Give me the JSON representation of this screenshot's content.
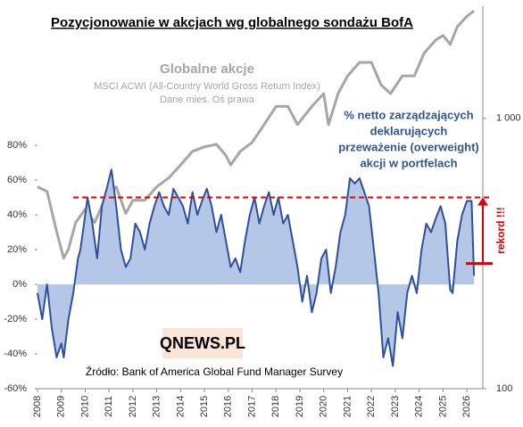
{
  "chart_data": {
    "type": "line",
    "title": "Pozycjonowanie w akcjach wg globalnego sondażu BofA",
    "subtitle_lines": [
      "MSCI ACWI (All-Country World Gross Return Index)",
      "Dane mies. Oś prawa"
    ],
    "annotation_lines": [
      "% netto zarządzających",
      "deklarujących",
      "przeważenie (overweight)",
      "akcji w portfelach"
    ],
    "record_label": "rekord !!!",
    "record_line": 50,
    "record_arrow": [
      12,
      50
    ],
    "source": "Źródło: Bank of America Global Fund Manager Survey",
    "logo": "QNEWS.PL",
    "xlim": [
      2008,
      2026.67
    ],
    "xticks": [
      2008,
      2009,
      2010,
      2011,
      2012,
      2013,
      2014,
      2015,
      2016,
      2017,
      2018,
      2019,
      2020,
      2021,
      2022,
      2023,
      2024,
      2025,
      2026
    ],
    "ylim": [
      -60,
      160
    ],
    "yticks": [
      {
        "value": -60,
        "label": "-60%"
      },
      {
        "value": -40,
        "label": "-40%"
      },
      {
        "value": -20,
        "label": "-20%"
      },
      {
        "value": 0,
        "label": "0%"
      },
      {
        "value": 20,
        "label": "20%"
      },
      {
        "value": 40,
        "label": "40%"
      },
      {
        "value": 60,
        "label": "60%"
      },
      {
        "value": 80,
        "label": "80%"
      }
    ],
    "y2lim": [
      100,
      2600
    ],
    "y2ticks": [
      100,
      {
        "value": 1000,
        "label": "1 000"
      }
    ],
    "y2_log": true,
    "grid": false,
    "series": [
      {
        "color": "#2f4f9a",
        "fill": "#b4c7e7",
        "x": [
          2008.0,
          2008.2,
          2008.4,
          2008.6,
          2008.8,
          2009.0,
          2009.1,
          2009.3,
          2009.5,
          2009.7,
          2009.8,
          2010.0,
          2010.1,
          2010.3,
          2010.5,
          2010.7,
          2010.9,
          2011.1,
          2011.3,
          2011.5,
          2011.7,
          2011.9,
          2012.1,
          2012.3,
          2012.5,
          2012.7,
          2012.9,
          2013.1,
          2013.3,
          2013.5,
          2013.7,
          2013.9,
          2014.1,
          2014.3,
          2014.5,
          2014.7,
          2014.9,
          2015.1,
          2015.3,
          2015.5,
          2015.7,
          2015.9,
          2016.1,
          2016.3,
          2016.5,
          2016.7,
          2016.9,
          2017.1,
          2017.3,
          2017.5,
          2017.7,
          2017.9,
          2018.1,
          2018.3,
          2018.5,
          2018.7,
          2018.9,
          2019.1,
          2019.3,
          2019.5,
          2019.7,
          2019.9,
          2020.1,
          2020.3,
          2020.5,
          2020.7,
          2020.9,
          2021.1,
          2021.3,
          2021.5,
          2021.7,
          2021.9,
          2022.1,
          2022.3,
          2022.5,
          2022.7,
          2022.9,
          2023.1,
          2023.3,
          2023.5,
          2023.7,
          2023.9,
          2024.1,
          2024.3,
          2024.5,
          2024.7,
          2024.9,
          2025.1,
          2025.3,
          2025.4,
          2025.6,
          2025.8,
          2026.0,
          2026.2,
          2026.3
        ],
        "values": [
          -5,
          -20,
          0,
          -25,
          -42,
          -34,
          -42,
          -20,
          -5,
          15,
          20,
          40,
          50,
          35,
          15,
          45,
          55,
          66,
          45,
          20,
          10,
          15,
          35,
          30,
          20,
          35,
          45,
          53,
          45,
          40,
          55,
          50,
          45,
          35,
          53,
          40,
          48,
          55,
          45,
          30,
          40,
          25,
          10,
          15,
          7,
          25,
          40,
          50,
          35,
          45,
          53,
          40,
          50,
          35,
          40,
          25,
          10,
          -10,
          5,
          -16,
          -5,
          15,
          20,
          -5,
          10,
          30,
          40,
          61,
          58,
          61,
          53,
          45,
          20,
          -5,
          -42,
          -31,
          -47,
          -16,
          -31,
          -5,
          5,
          -5,
          20,
          35,
          30,
          38,
          45,
          35,
          -3,
          -5,
          25,
          40,
          48,
          48,
          5
        ]
      },
      {
        "name": "Globalne akcje",
        "color": "#a6a6a6",
        "axis": "y2",
        "x": [
          2008.0,
          2008.4,
          2008.8,
          2009.1,
          2009.3,
          2009.6,
          2010.0,
          2010.4,
          2010.8,
          2011.3,
          2011.7,
          2012.0,
          2012.5,
          2013.0,
          2013.5,
          2014.0,
          2014.5,
          2015.0,
          2015.5,
          2015.9,
          2016.1,
          2016.5,
          2017.0,
          2017.5,
          2018.0,
          2018.5,
          2018.9,
          2019.5,
          2020.0,
          2020.2,
          2020.6,
          2021.0,
          2021.5,
          2022.0,
          2022.4,
          2022.8,
          2023.3,
          2023.8,
          2024.2,
          2024.7,
          2025.0,
          2025.3,
          2025.6,
          2026.0,
          2026.3
        ],
        "values": [
          558,
          537,
          382,
          304,
          328,
          412,
          461,
          412,
          498,
          558,
          445,
          498,
          498,
          558,
          602,
          673,
          755,
          785,
          802,
          729,
          673,
          755,
          815,
          948,
          1107,
          1107,
          948,
          1107,
          1235,
          948,
          1235,
          1437,
          1611,
          1611,
          1332,
          1235,
          1437,
          1437,
          1740,
          1951,
          2027,
          1879,
          2183,
          2387,
          2500
        ]
      }
    ]
  }
}
